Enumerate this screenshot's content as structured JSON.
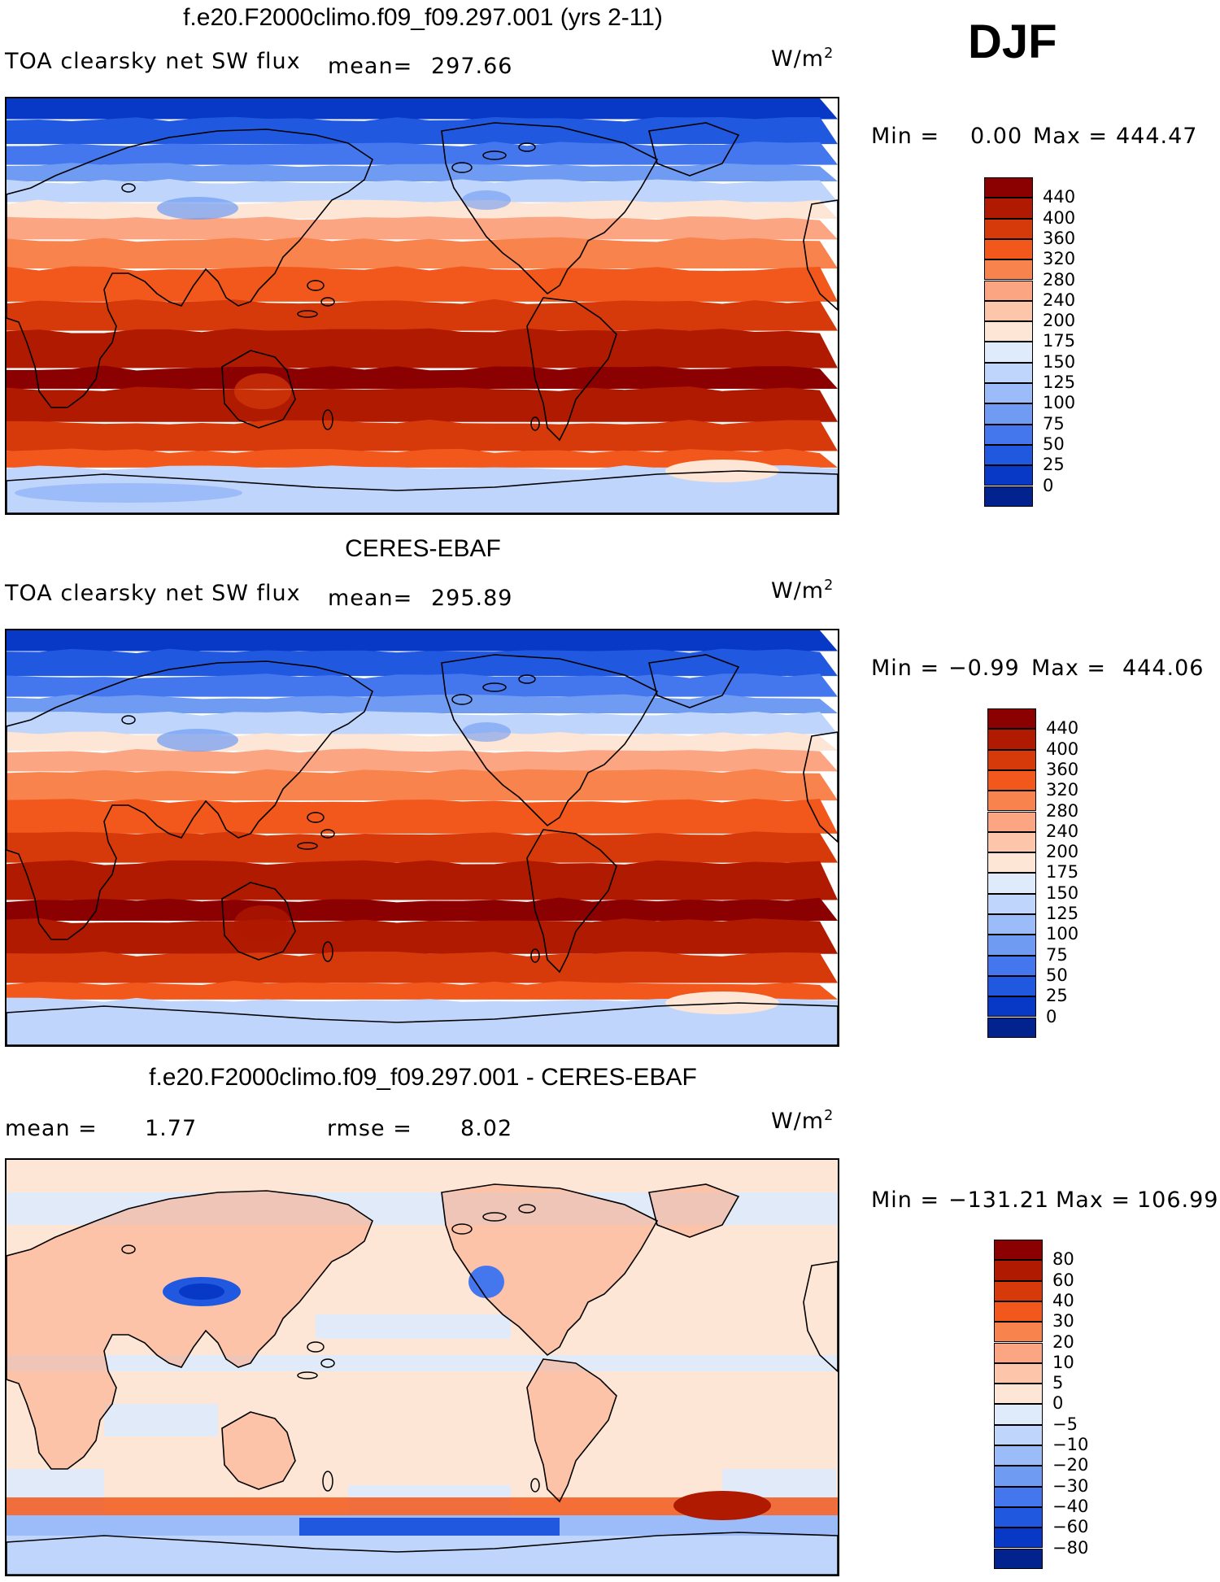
{
  "season": "DJF",
  "panels": [
    {
      "title": "f.e20.F2000climo.f09_f09.297.001 (yrs 2-11)",
      "left_label": "TOA clearsky net SW flux",
      "stat_label": "mean=",
      "stat_value": "297.66",
      "units": "W/m",
      "units_sup": "2",
      "minmax_label": "Min =",
      "min": "0.00",
      "max_label": "Max =",
      "max": "444.47",
      "colorbar": {
        "labels": [
          "440",
          "400",
          "360",
          "320",
          "280",
          "240",
          "200",
          "175",
          "150",
          "125",
          "100",
          "75",
          "50",
          "25",
          "0"
        ],
        "colors": [
          "#8b0000",
          "#b01a00",
          "#d63a0a",
          "#f2581b",
          "#f8834d",
          "#fba583",
          "#fdc6aa",
          "#fde6d6",
          "#dfeafb",
          "#bfd5fb",
          "#9bbcf8",
          "#6f9bf3",
          "#4477ee",
          "#2058e0",
          "#0838c6",
          "#02238e"
        ]
      }
    },
    {
      "title": "CERES-EBAF",
      "left_label": "TOA clearsky net SW flux",
      "stat_label": "mean=",
      "stat_value": "295.89",
      "units": "W/m",
      "units_sup": "2",
      "minmax_label": "Min =",
      "min": "−0.99",
      "max_label": "Max =",
      "max": "444.06",
      "colorbar": {
        "labels": [
          "440",
          "400",
          "360",
          "320",
          "280",
          "240",
          "200",
          "175",
          "150",
          "125",
          "100",
          "75",
          "50",
          "25",
          "0"
        ],
        "colors": [
          "#8b0000",
          "#b01a00",
          "#d63a0a",
          "#f2581b",
          "#f8834d",
          "#fba583",
          "#fdc6aa",
          "#fde6d6",
          "#dfeafb",
          "#bfd5fb",
          "#9bbcf8",
          "#6f9bf3",
          "#4477ee",
          "#2058e0",
          "#0838c6",
          "#02238e"
        ]
      }
    },
    {
      "title": "f.e20.F2000climo.f09_f09.297.001 - CERES-EBAF",
      "mean_label": "mean =",
      "mean_value": "1.77",
      "rmse_label": "rmse =",
      "rmse_value": "8.02",
      "units": "W/m",
      "units_sup": "2",
      "minmax_label": "Min =",
      "min": "−131.21",
      "max_label": "Max =",
      "max": "106.99",
      "colorbar": {
        "labels": [
          "80",
          "60",
          "40",
          "30",
          "20",
          "10",
          "5",
          "0",
          "−5",
          "−10",
          "−20",
          "−30",
          "−40",
          "−60",
          "−80"
        ],
        "colors": [
          "#8b0000",
          "#b01a00",
          "#d63a0a",
          "#f2581b",
          "#f8834d",
          "#fba583",
          "#fdc6aa",
          "#fde6d6",
          "#dfeafb",
          "#bfd5fb",
          "#9bbcf8",
          "#6f9bf3",
          "#4477ee",
          "#2058e0",
          "#0838c6",
          "#02238e"
        ]
      }
    }
  ]
}
